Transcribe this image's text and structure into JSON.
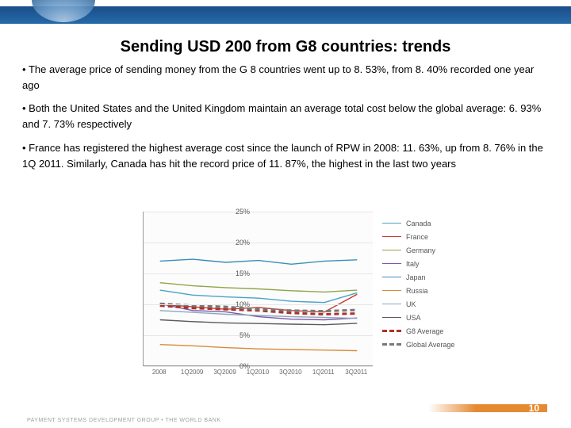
{
  "title": "Sending USD 200 from G8 countries: trends",
  "bullets": [
    "The average price of sending money from the G 8 countries went up to 8. 53%, from 8. 40% recorded one year ago",
    "Both the United States and the United Kingdom maintain an average total cost below the global average: 6. 93%  and 7. 73% respectively",
    "France has registered the highest average cost since the launch of RPW in 2008: 11. 63%, up from 8. 76% in the 1Q 2011. Similarly, Canada has hit the record price of 11. 87%, the highest in the last two years"
  ],
  "footer": "PAYMENT SYSTEMS DEVELOPMENT GROUP • THE WORLD BANK",
  "page_number": "10",
  "chart": {
    "type": "line",
    "background_color": "#fcfcfc",
    "grid_color": "#e6e6e6",
    "y_axis": {
      "min": 0,
      "max": 25,
      "ticks": [
        0,
        5,
        10,
        15,
        20,
        25
      ],
      "tick_labels": [
        "0%",
        "5%",
        "10%",
        "15%",
        "20%",
        "25%"
      ],
      "label_fontsize": 9
    },
    "x_categories": [
      "2008",
      "1Q2009",
      "3Q2009",
      "1Q2010",
      "3Q2010",
      "1Q2011",
      "3Q2011"
    ],
    "series": [
      {
        "name": "Canada",
        "color": "#4aa3c7",
        "width": 1.4,
        "dash": "none",
        "values": [
          12.3,
          11.5,
          11.2,
          11.0,
          10.5,
          10.3,
          11.87
        ]
      },
      {
        "name": "France",
        "color": "#c23a2e",
        "width": 1.4,
        "dash": "none",
        "values": [
          10.0,
          9.6,
          9.2,
          9.5,
          9.0,
          8.76,
          11.63
        ]
      },
      {
        "name": "Germany",
        "color": "#8ea64a",
        "width": 1.4,
        "dash": "none",
        "values": [
          13.5,
          13.0,
          12.7,
          12.5,
          12.2,
          12.0,
          12.3
        ]
      },
      {
        "name": "Italy",
        "color": "#7a5aa6",
        "width": 1.4,
        "dash": "none",
        "values": [
          10.1,
          9.0,
          8.8,
          8.0,
          7.6,
          7.5,
          7.8
        ]
      },
      {
        "name": "Japan",
        "color": "#3a8fb7",
        "width": 1.4,
        "dash": "none",
        "values": [
          17.0,
          17.3,
          16.8,
          17.1,
          16.5,
          17.0,
          17.2
        ]
      },
      {
        "name": "Russia",
        "color": "#d98a3a",
        "width": 1.4,
        "dash": "none",
        "values": [
          3.5,
          3.3,
          3.0,
          2.8,
          2.7,
          2.6,
          2.5
        ]
      },
      {
        "name": "UK",
        "color": "#8aa6c0",
        "width": 1.4,
        "dash": "none",
        "values": [
          9.0,
          8.7,
          8.4,
          8.2,
          8.0,
          7.9,
          7.73
        ]
      },
      {
        "name": "USA",
        "color": "#5a5a5a",
        "width": 1.4,
        "dash": "none",
        "values": [
          7.5,
          7.2,
          7.0,
          6.9,
          6.8,
          6.7,
          6.93
        ]
      },
      {
        "name": "G8 Average",
        "color": "#b03028",
        "width": 3.0,
        "dash": "6,4",
        "values": [
          9.8,
          9.4,
          9.2,
          9.0,
          8.6,
          8.4,
          8.53
        ]
      },
      {
        "name": "Global Average",
        "color": "#777777",
        "width": 3.0,
        "dash": "6,4",
        "values": [
          10.1,
          9.8,
          9.6,
          9.2,
          9.0,
          8.9,
          9.1
        ]
      }
    ],
    "legend": {
      "position": "right",
      "fontsize": 9
    }
  },
  "colors": {
    "banner_blue": "#266aa8",
    "footer_orange": "#e68a32",
    "title_color": "#000000"
  }
}
